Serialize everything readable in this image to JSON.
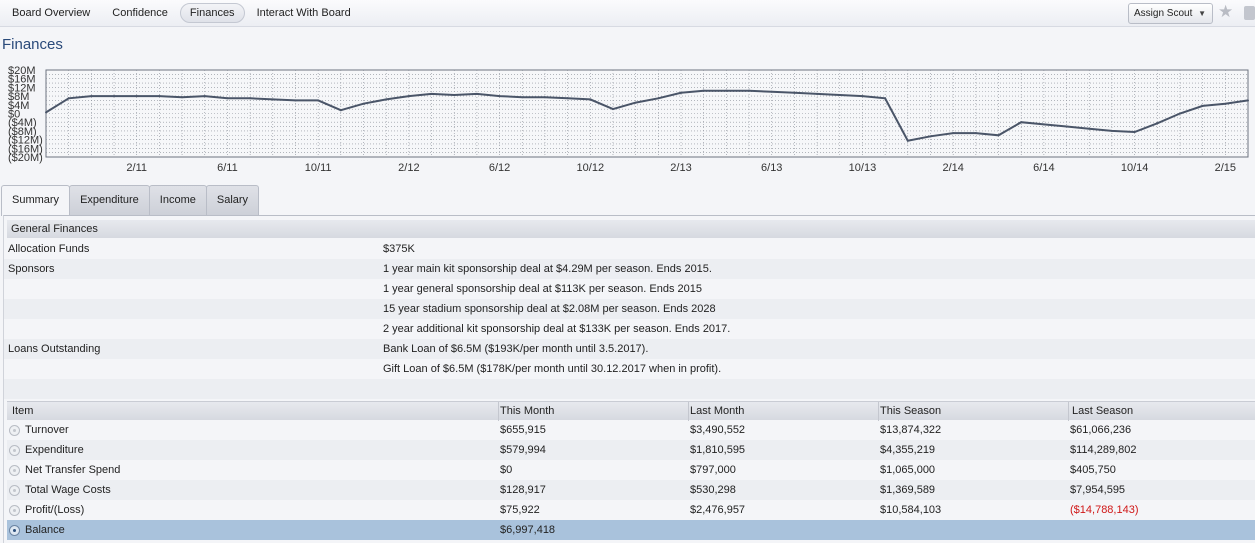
{
  "nav": {
    "tabs": [
      "Board Overview",
      "Confidence",
      "Finances",
      "Interact With Board"
    ],
    "active": "Finances"
  },
  "assign_scout": {
    "label": "Assign Scout"
  },
  "page_title": "Finances",
  "chart_data": {
    "type": "line",
    "y_tick_labels": [
      "$20M",
      "$16M",
      "$12M",
      "$8M",
      "$4M",
      "$0",
      "($4M)",
      "($8M)",
      "($12M)",
      "($16M)",
      "($20M)"
    ],
    "ylim": [
      -20,
      20
    ],
    "x_tick_labels": [
      "2/11",
      "6/11",
      "10/11",
      "2/12",
      "6/12",
      "10/12",
      "2/13",
      "6/13",
      "10/13",
      "2/14",
      "6/14",
      "10/14",
      "2/15"
    ],
    "series": [
      {
        "values": [
          [
            "10/10",
            0.5
          ],
          [
            "11/10",
            7
          ],
          [
            "12/10",
            8
          ],
          [
            "1/11",
            8
          ],
          [
            "2/11",
            8
          ],
          [
            "3/11",
            8
          ],
          [
            "4/11",
            7.5
          ],
          [
            "5/11",
            8
          ],
          [
            "6/11",
            7
          ],
          [
            "7/11",
            7
          ],
          [
            "8/11",
            6.5
          ],
          [
            "9/11",
            6
          ],
          [
            "10/11",
            6
          ],
          [
            "11/11",
            1.5
          ],
          [
            "12/11",
            4.5
          ],
          [
            "1/12",
            6.5
          ],
          [
            "2/12",
            8
          ],
          [
            "3/12",
            9
          ],
          [
            "4/12",
            8.5
          ],
          [
            "5/12",
            9
          ],
          [
            "6/12",
            8
          ],
          [
            "7/12",
            7.5
          ],
          [
            "8/12",
            7.5
          ],
          [
            "9/12",
            7
          ],
          [
            "10/12",
            6.5
          ],
          [
            "11/12",
            2
          ],
          [
            "12/12",
            5
          ],
          [
            "1/13",
            7
          ],
          [
            "2/13",
            9.5
          ],
          [
            "3/13",
            10.5
          ],
          [
            "4/13",
            10.5
          ],
          [
            "5/13",
            10.5
          ],
          [
            "6/13",
            10
          ],
          [
            "7/13",
            9.5
          ],
          [
            "8/13",
            9
          ],
          [
            "9/13",
            8.5
          ],
          [
            "10/13",
            8
          ],
          [
            "11/13",
            7
          ],
          [
            "12/13",
            -12.5
          ],
          [
            "1/14",
            -10.5
          ],
          [
            "2/14",
            -9
          ],
          [
            "3/14",
            -9
          ],
          [
            "4/14",
            -10
          ],
          [
            "5/14",
            -4
          ],
          [
            "6/14",
            -5
          ],
          [
            "7/14",
            -6
          ],
          [
            "8/14",
            -7
          ],
          [
            "9/14",
            -8
          ],
          [
            "10/14",
            -8.5
          ],
          [
            "11/14",
            -4.5
          ],
          [
            "12/14",
            0
          ],
          [
            "1/15",
            3.5
          ],
          [
            "2/15",
            4.5
          ],
          [
            "3/15",
            6
          ]
        ]
      }
    ]
  },
  "subtabs": {
    "items": [
      "Summary",
      "Expenditure",
      "Income",
      "Salary"
    ],
    "active": "Summary"
  },
  "general": {
    "heading": "General Finances",
    "allocation_label": "Allocation Funds",
    "allocation_value": "$375K",
    "sponsors_label": "Sponsors",
    "sponsors": [
      "1 year main kit sponsorship deal at $4.29M per season. Ends 2015.",
      "1 year general sponsorship deal at $113K per season. Ends 2015",
      "15 year stadium sponsorship deal at $2.08M per season. Ends 2028",
      "2 year additional kit sponsorship deal at $133K per season. Ends 2017."
    ],
    "loans_label": "Loans Outstanding",
    "loans": [
      "Bank Loan of $6.5M ($193K/per month until 3.5.2017).",
      "Gift Loan of $6.5M ($178K/per month until 30.12.2017 when in profit)."
    ]
  },
  "table": {
    "headers": [
      "Item",
      "This Month",
      "Last Month",
      "This Season",
      "Last Season"
    ],
    "rows": [
      {
        "item": "Turnover",
        "this_month": "$655,915",
        "last_month": "$3,490,552",
        "this_season": "$13,874,322",
        "last_season": "$61,066,236"
      },
      {
        "item": "Expenditure",
        "this_month": "$579,994",
        "last_month": "$1,810,595",
        "this_season": "$4,355,219",
        "last_season": "$114,289,802"
      },
      {
        "item": "Net Transfer Spend",
        "this_month": "$0",
        "last_month": "$797,000",
        "this_season": "$1,065,000",
        "last_season": "$405,750"
      },
      {
        "item": "Total Wage Costs",
        "this_month": "$128,917",
        "last_month": "$530,298",
        "this_season": "$1,369,589",
        "last_season": "$7,954,595"
      },
      {
        "item": "Profit/(Loss)",
        "this_month": "$75,922",
        "last_month": "$2,476,957",
        "this_season": "$10,584,103",
        "last_season": "($14,788,143)"
      },
      {
        "item": "Balance",
        "this_month": "$6,997,418",
        "last_month": "",
        "this_season": "",
        "last_season": ""
      }
    ],
    "negative_color": "#d01818",
    "selected_row": "Balance"
  }
}
